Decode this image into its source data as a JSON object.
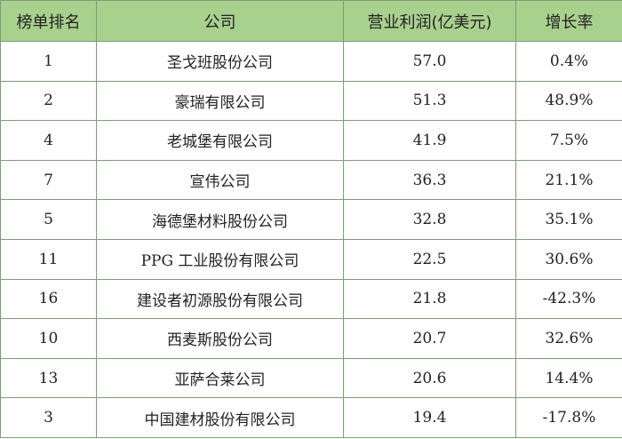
{
  "headers": [
    "榜单排名",
    "公司",
    "营业利润(亿美元)",
    "增长率"
  ],
  "rows": [
    {
      "rank": "1",
      "company": "圣戈班股份公司",
      "profit": "57.0",
      "growth": "0.4%"
    },
    {
      "rank": "2",
      "company": "豪瑞有限公司",
      "profit": "51.3",
      "growth": "48.9%"
    },
    {
      "rank": "4",
      "company": "老城堡有限公司",
      "profit": "41.9",
      "growth": "7.5%"
    },
    {
      "rank": "7",
      "company": "宣伟公司",
      "profit": "36.3",
      "growth": "21.1%"
    },
    {
      "rank": "5",
      "company": "海德堡材料股份公司",
      "profit": "32.8",
      "growth": "35.1%"
    },
    {
      "rank": "11",
      "company": "PPG 工业股份有限公司",
      "profit": "22.5",
      "growth": "30.6%"
    },
    {
      "rank": "16",
      "company": "建设者初源股份有限公司",
      "profit": "21.8",
      "growth": "-42.3%"
    },
    {
      "rank": "10",
      "company": "西麦斯股份公司",
      "profit": "20.7",
      "growth": "32.6%"
    },
    {
      "rank": "13",
      "company": "亚萨合莱公司",
      "profit": "20.6",
      "growth": "14.4%"
    },
    {
      "rank": "3",
      "company": "中国建材股份有限公司",
      "profit": "19.4",
      "growth": "-17.8%"
    }
  ],
  "colors": {
    "header_bg": "#a9d18e",
    "border": "#7f9a7a"
  }
}
